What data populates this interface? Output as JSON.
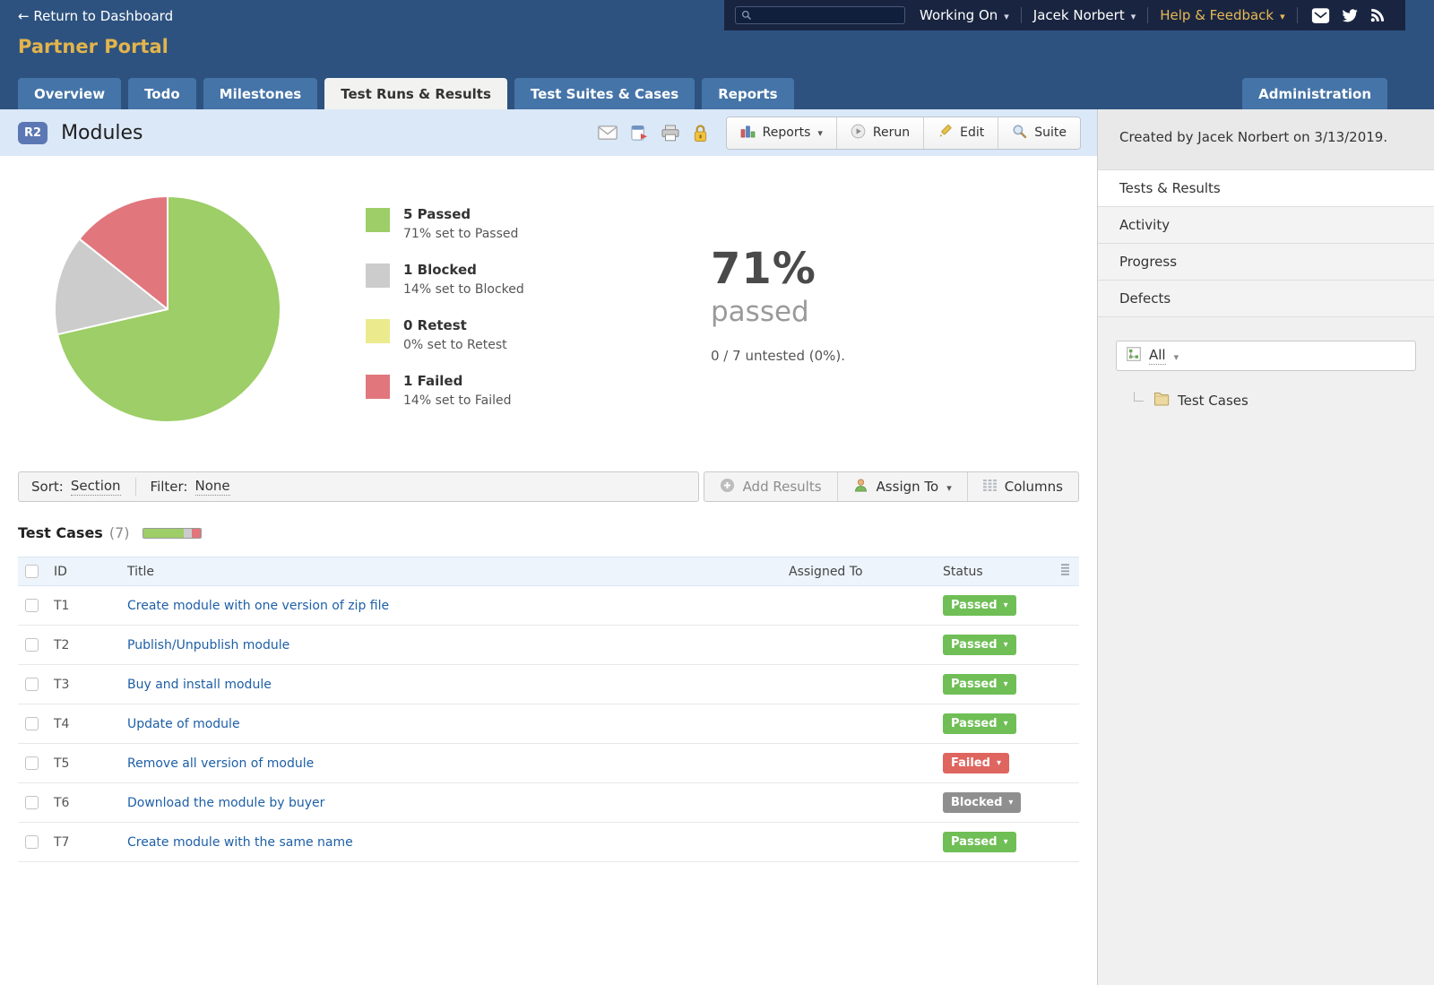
{
  "header": {
    "return_link": "← Return to Dashboard",
    "portal_title": "Partner Portal",
    "working_on": "Working On",
    "user_name": "Jacek Norbert",
    "help_feedback": "Help & Feedback"
  },
  "tabs": [
    {
      "label": "Overview"
    },
    {
      "label": "Todo"
    },
    {
      "label": "Milestones"
    },
    {
      "label": "Test Runs & Results"
    },
    {
      "label": "Test Suites & Cases"
    },
    {
      "label": "Reports"
    }
  ],
  "admin_tab": {
    "label": "Administration"
  },
  "run_header": {
    "badge": "R2",
    "title": "Modules",
    "reports_button": "Reports",
    "rerun_button": "Rerun",
    "edit_button": "Edit",
    "suite_button": "Suite"
  },
  "chart_data": {
    "type": "pie",
    "labels": [
      "Passed",
      "Blocked",
      "Retest",
      "Failed"
    ],
    "values": [
      5,
      1,
      0,
      1
    ],
    "percents": [
      71,
      14,
      0,
      14
    ],
    "colors": [
      "#9dce67",
      "#cccccc",
      "#ebeb8d",
      "#e1767d"
    ],
    "total_tests": 7,
    "start_angle": 0,
    "direction": "clockwise",
    "legend_position": "right"
  },
  "legend": [
    {
      "label": "5 Passed",
      "detail": "71% set to Passed"
    },
    {
      "label": "1 Blocked",
      "detail": "14% set to Blocked"
    },
    {
      "label": "0 Retest",
      "detail": "0% set to Retest"
    },
    {
      "label": "1 Failed",
      "detail": "14% set to Failed"
    }
  ],
  "summary": {
    "percent": "71%",
    "label": "passed",
    "untested": "0 / 7 untested (0%)."
  },
  "toolbar": {
    "sort_label": "Sort:",
    "sort_value": "Section",
    "filter_label": "Filter:",
    "filter_value": "None",
    "add_results": "Add Results",
    "assign_to": "Assign To",
    "columns": "Columns"
  },
  "test_cases_header": {
    "title": "Test Cases",
    "count": "(7)"
  },
  "table": {
    "headers": {
      "id": "ID",
      "title": "Title",
      "assigned_to": "Assigned To",
      "status": "Status"
    },
    "rows": [
      {
        "id": "T1",
        "title": "Create module with one version of zip file",
        "assigned_to": "",
        "status": "Passed"
      },
      {
        "id": "T2",
        "title": "Publish/Unpublish module",
        "assigned_to": "",
        "status": "Passed"
      },
      {
        "id": "T3",
        "title": "Buy and install module",
        "assigned_to": "",
        "status": "Passed"
      },
      {
        "id": "T4",
        "title": "Update of module",
        "assigned_to": "",
        "status": "Passed"
      },
      {
        "id": "T5",
        "title": "Remove all version of module",
        "assigned_to": "",
        "status": "Failed"
      },
      {
        "id": "T6",
        "title": "Download the module by buyer",
        "assigned_to": "",
        "status": "Blocked"
      },
      {
        "id": "T7",
        "title": "Create module with the same name",
        "assigned_to": "",
        "status": "Passed"
      }
    ]
  },
  "sidebar": {
    "created_by": "Created by Jacek Norbert on 3/13/2019.",
    "tabs": [
      {
        "label": "Tests & Results"
      },
      {
        "label": "Activity"
      },
      {
        "label": "Progress"
      },
      {
        "label": "Defects"
      }
    ],
    "filter_value": "All",
    "tree_item": "Test Cases"
  },
  "colors": {
    "header_bg": "#2d527f",
    "topbar_bg": "#192540",
    "tab_bg": "#4574a8",
    "accent_gold": "#e3b44c",
    "run_header_bg": "#dbe8f8",
    "link": "#1d5fa6",
    "status_passed": "#6fbe56",
    "status_failed": "#df655f",
    "status_blocked": "#8f8f8f"
  }
}
